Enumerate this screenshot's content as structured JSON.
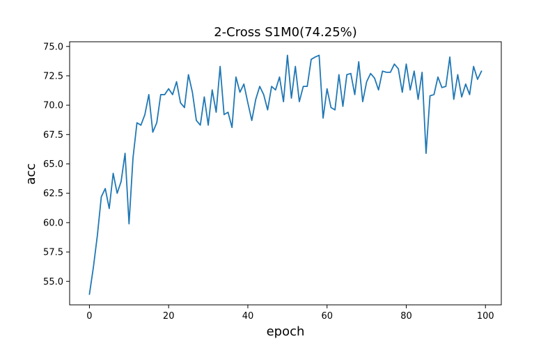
{
  "chart_data": {
    "type": "line",
    "title": "2-Cross S1M0(74.25%)",
    "xlabel": "epoch",
    "ylabel": "acc",
    "xlim": [
      -5,
      104
    ],
    "ylim": [
      53.0,
      75.4
    ],
    "xticks": [
      0,
      20,
      40,
      60,
      80,
      100
    ],
    "xtick_labels": [
      "0",
      "20",
      "40",
      "60",
      "80",
      "100"
    ],
    "yticks": [
      55.0,
      57.5,
      60.0,
      62.5,
      65.0,
      67.5,
      70.0,
      72.5,
      75.0
    ],
    "ytick_labels": [
      "55.0",
      "57.5",
      "60.0",
      "62.5",
      "65.0",
      "67.5",
      "70.0",
      "72.5",
      "75.0"
    ],
    "grid": false,
    "series": [
      {
        "color": "#1f77b4",
        "x": [
          0,
          1,
          2,
          3,
          4,
          5,
          6,
          7,
          8,
          9,
          10,
          11,
          12,
          13,
          14,
          15,
          16,
          17,
          18,
          19,
          20,
          21,
          22,
          23,
          24,
          25,
          26,
          27,
          28,
          29,
          30,
          31,
          32,
          33,
          34,
          35,
          36,
          37,
          38,
          39,
          40,
          41,
          42,
          43,
          44,
          45,
          46,
          47,
          48,
          49,
          50,
          51,
          52,
          53,
          54,
          55,
          56,
          57,
          58,
          59,
          60,
          61,
          62,
          63,
          64,
          65,
          66,
          67,
          68,
          69,
          70,
          71,
          72,
          73,
          74,
          75,
          76,
          77,
          78,
          79,
          80,
          81,
          82,
          83,
          84,
          85,
          86,
          87,
          88,
          89,
          90,
          91,
          92,
          93,
          94,
          95,
          96,
          97,
          98,
          99
        ],
        "y": [
          53.9,
          56.2,
          58.9,
          62.2,
          62.9,
          61.2,
          64.2,
          62.5,
          63.5,
          65.9,
          59.9,
          65.5,
          68.5,
          68.3,
          69.2,
          70.9,
          67.7,
          68.5,
          70.9,
          70.9,
          71.4,
          70.9,
          72.0,
          70.2,
          69.8,
          72.6,
          71.1,
          68.7,
          68.3,
          70.7,
          68.3,
          71.3,
          69.4,
          73.3,
          69.2,
          69.4,
          68.1,
          72.4,
          71.1,
          71.8,
          70.2,
          68.7,
          70.5,
          71.6,
          70.9,
          69.6,
          71.6,
          71.3,
          72.4,
          70.3,
          74.25,
          70.6,
          73.3,
          70.3,
          71.6,
          71.6,
          73.9,
          74.1,
          74.25,
          68.9,
          71.4,
          69.8,
          69.6,
          72.6,
          69.9,
          72.6,
          72.7,
          70.9,
          73.7,
          70.3,
          72.0,
          72.7,
          72.3,
          71.3,
          72.9,
          72.8,
          72.8,
          73.5,
          73.1,
          71.1,
          73.5,
          71.3,
          72.9,
          70.5,
          72.8,
          65.9,
          70.8,
          70.9,
          72.4,
          71.5,
          71.6,
          74.1,
          70.5,
          72.6,
          70.7,
          71.8,
          70.9,
          73.3,
          72.2,
          72.9
        ]
      }
    ]
  }
}
